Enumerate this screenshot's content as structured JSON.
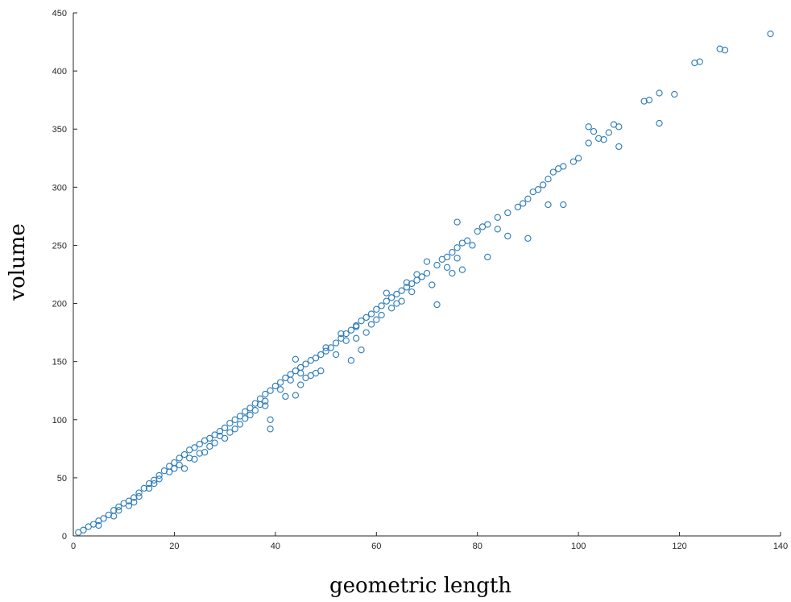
{
  "chart_data": {
    "type": "scatter",
    "title": "",
    "xlabel": "geometric length",
    "ylabel": "volume",
    "xlim": [
      0,
      140
    ],
    "ylim": [
      0,
      450
    ],
    "x_ticks": [
      0,
      20,
      40,
      60,
      80,
      100,
      120,
      140
    ],
    "y_ticks": [
      0,
      50,
      100,
      150,
      200,
      250,
      300,
      350,
      400,
      450
    ],
    "grid": false,
    "marker_color": "#2a7ab8",
    "marker": "open-circle",
    "series": [
      {
        "points": [
          [
            1,
            3
          ],
          [
            2,
            5
          ],
          [
            3,
            8
          ],
          [
            4,
            10
          ],
          [
            5,
            13
          ],
          [
            6,
            15
          ],
          [
            7,
            18
          ],
          [
            8,
            22
          ],
          [
            9,
            25
          ],
          [
            10,
            28
          ],
          [
            11,
            30
          ],
          [
            12,
            33
          ],
          [
            13,
            37
          ],
          [
            14,
            41
          ],
          [
            15,
            45
          ],
          [
            16,
            48
          ],
          [
            17,
            52
          ],
          [
            18,
            56
          ],
          [
            19,
            60
          ],
          [
            20,
            63
          ],
          [
            21,
            67
          ],
          [
            22,
            70
          ],
          [
            23,
            74
          ],
          [
            24,
            76
          ],
          [
            25,
            79
          ],
          [
            26,
            82
          ],
          [
            27,
            84
          ],
          [
            28,
            87
          ],
          [
            29,
            90
          ],
          [
            30,
            93
          ],
          [
            31,
            97
          ],
          [
            32,
            100
          ],
          [
            33,
            103
          ],
          [
            34,
            107
          ],
          [
            35,
            110
          ],
          [
            36,
            114
          ],
          [
            37,
            118
          ],
          [
            38,
            122
          ],
          [
            39,
            125
          ],
          [
            40,
            129
          ],
          [
            41,
            132
          ],
          [
            42,
            136
          ],
          [
            43,
            139
          ],
          [
            44,
            142
          ],
          [
            45,
            145
          ],
          [
            46,
            148
          ],
          [
            47,
            151
          ],
          [
            48,
            153
          ],
          [
            49,
            156
          ],
          [
            50,
            159
          ],
          [
            51,
            162
          ],
          [
            52,
            166
          ],
          [
            53,
            170
          ],
          [
            54,
            174
          ],
          [
            55,
            177
          ],
          [
            56,
            181
          ],
          [
            57,
            185
          ],
          [
            58,
            188
          ],
          [
            59,
            191
          ],
          [
            60,
            195
          ],
          [
            61,
            198
          ],
          [
            62,
            202
          ],
          [
            63,
            205
          ],
          [
            64,
            208
          ],
          [
            65,
            211
          ],
          [
            66,
            214
          ],
          [
            67,
            217
          ],
          [
            68,
            220
          ],
          [
            69,
            223
          ],
          [
            70,
            226
          ],
          [
            72,
            233
          ],
          [
            74,
            240
          ],
          [
            75,
            244
          ],
          [
            76,
            248
          ],
          [
            77,
            252
          ],
          [
            78,
            254
          ],
          [
            80,
            262
          ],
          [
            81,
            266
          ],
          [
            82,
            268
          ],
          [
            84,
            274
          ],
          [
            86,
            278
          ],
          [
            88,
            283
          ],
          [
            89,
            286
          ],
          [
            90,
            290
          ],
          [
            91,
            296
          ],
          [
            93,
            302
          ],
          [
            94,
            307
          ],
          [
            95,
            313
          ],
          [
            97,
            318
          ],
          [
            99,
            322
          ],
          [
            102,
            338
          ],
          [
            104,
            342
          ],
          [
            106,
            347
          ],
          [
            108,
            352
          ],
          [
            113,
            374
          ],
          [
            116,
            381
          ],
          [
            119,
            380
          ],
          [
            124,
            408
          ],
          [
            128,
            419
          ],
          [
            138,
            432
          ],
          [
            5,
            9
          ],
          [
            8,
            17
          ],
          [
            12,
            29
          ],
          [
            16,
            45
          ],
          [
            22,
            58
          ],
          [
            25,
            71
          ],
          [
            28,
            80
          ],
          [
            30,
            84
          ],
          [
            33,
            96
          ],
          [
            36,
            108
          ],
          [
            38,
            112
          ],
          [
            39,
            92
          ],
          [
            39,
            100
          ],
          [
            42,
            120
          ],
          [
            44,
            121
          ],
          [
            46,
            136
          ],
          [
            48,
            140
          ],
          [
            52,
            156
          ],
          [
            55,
            151
          ],
          [
            57,
            160
          ],
          [
            59,
            182
          ],
          [
            63,
            196
          ],
          [
            65,
            202
          ],
          [
            67,
            210
          ],
          [
            71,
            216
          ],
          [
            72,
            199
          ],
          [
            75,
            226
          ],
          [
            77,
            229
          ],
          [
            82,
            240
          ],
          [
            86,
            258
          ],
          [
            90,
            256
          ],
          [
            94,
            285
          ],
          [
            97,
            285
          ],
          [
            102,
            352
          ],
          [
            105,
            341
          ],
          [
            108,
            335
          ],
          [
            116,
            355
          ],
          [
            123,
            407
          ],
          [
            129,
            418
          ],
          [
            44,
            152
          ],
          [
            20,
            58
          ],
          [
            24,
            66
          ],
          [
            26,
            72
          ],
          [
            32,
            92
          ],
          [
            34,
            101
          ],
          [
            38,
            116
          ],
          [
            45,
            130
          ],
          [
            49,
            142
          ],
          [
            53,
            174
          ],
          [
            56,
            170
          ],
          [
            58,
            175
          ],
          [
            61,
            190
          ],
          [
            64,
            200
          ],
          [
            68,
            225
          ],
          [
            70,
            236
          ],
          [
            73,
            238
          ],
          [
            76,
            239
          ],
          [
            79,
            250
          ],
          [
            84,
            264
          ],
          [
            92,
            298
          ],
          [
            96,
            316
          ],
          [
            100,
            325
          ],
          [
            103,
            348
          ],
          [
            107,
            354
          ],
          [
            114,
            375
          ],
          [
            76,
            270
          ],
          [
            74,
            231
          ],
          [
            66,
            218
          ],
          [
            62,
            209
          ],
          [
            47,
            138
          ],
          [
            9,
            22
          ],
          [
            11,
            26
          ],
          [
            13,
            34
          ],
          [
            15,
            41
          ],
          [
            17,
            49
          ],
          [
            19,
            55
          ],
          [
            21,
            61
          ],
          [
            23,
            67
          ],
          [
            27,
            77
          ],
          [
            29,
            86
          ],
          [
            31,
            89
          ],
          [
            35,
            104
          ],
          [
            37,
            113
          ],
          [
            41,
            126
          ],
          [
            43,
            134
          ],
          [
            45,
            140
          ],
          [
            50,
            162
          ],
          [
            54,
            168
          ],
          [
            56,
            180
          ],
          [
            60,
            186
          ]
        ]
      }
    ]
  }
}
